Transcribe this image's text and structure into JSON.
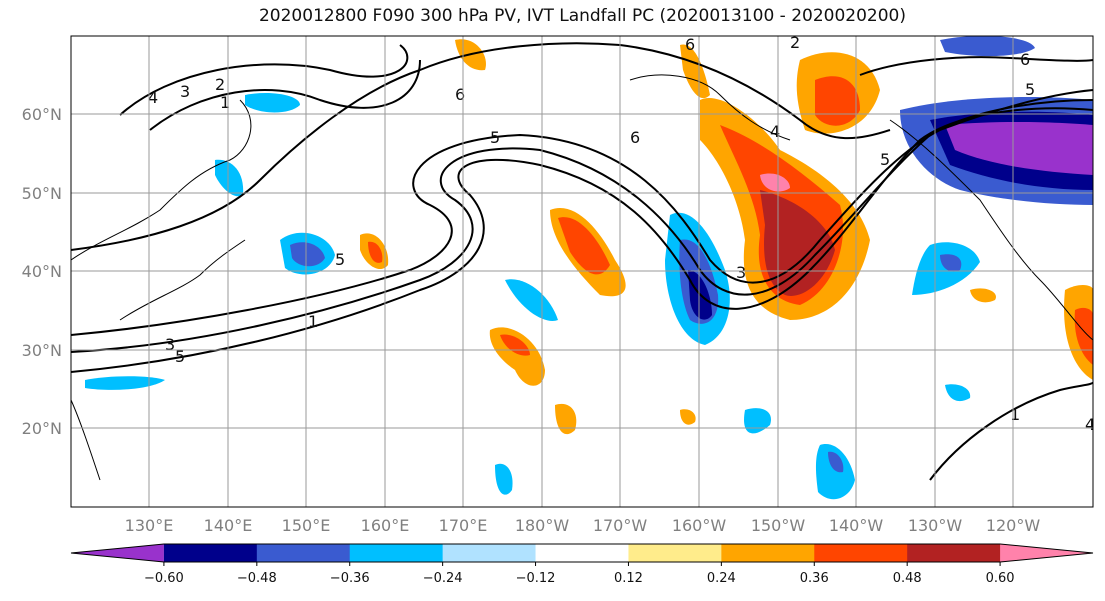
{
  "title": "2020012800 F090 300 hPa PV, IVT Landfall PC (2020013100 - 2020020200)",
  "lat_ticks": [
    "60°N",
    "50°N",
    "40°N",
    "30°N",
    "20°N"
  ],
  "lon_ticks": [
    "130°E",
    "140°E",
    "150°E",
    "160°E",
    "170°E",
    "180°W",
    "170°W",
    "160°W",
    "150°W",
    "140°W",
    "130°W",
    "120°W"
  ],
  "colorbar": {
    "colors": [
      "#9932CC",
      "#00008B",
      "#3A5BD0",
      "#00BFFF",
      "#B0E2FF",
      "#FFFFFF",
      "#FFEC8B",
      "#FFA500",
      "#FF4500",
      "#B22222",
      "#FF82AB"
    ],
    "tick_labels": [
      "−0.60",
      "−0.48",
      "−0.36",
      "−0.24",
      "−0.12",
      "0.12",
      "0.24",
      "0.36",
      "0.48",
      "0.60"
    ]
  },
  "contour_labels": [
    "4",
    "3",
    "2",
    "1",
    "5",
    "6",
    "6",
    "5",
    "6",
    "4",
    "5",
    "5",
    "6",
    "3",
    "2",
    "1",
    "3",
    "5",
    "1",
    "4"
  ]
}
